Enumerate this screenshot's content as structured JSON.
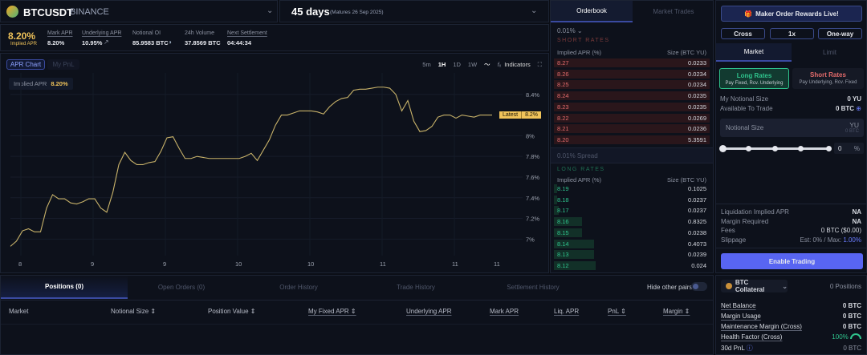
{
  "market": {
    "symbol": "BTCUSDT",
    "exchange": "BINANCE",
    "maturity_days": "45 days",
    "maturity_note": "(Matures 26 Sep 2025)"
  },
  "stats": {
    "implied_apr": "8.20%",
    "implied_apr_label": "Implied APR",
    "items": [
      {
        "label": "Mark APR",
        "value": "8.20%"
      },
      {
        "label": "Underlying APR",
        "value": "10.95%"
      },
      {
        "label": "Notional OI",
        "value": "85.9583 BTC"
      },
      {
        "label": "24h Volume",
        "value": "37.8569 BTC"
      },
      {
        "label": "Next Settlement",
        "value": "04:44:34"
      }
    ]
  },
  "chart_tabs": [
    "APR Chart",
    "My PnL"
  ],
  "toolbar": {
    "intervals": [
      "5m",
      "1H",
      "1D",
      "1W"
    ],
    "active_interval": "1H",
    "indicators": "Indicators"
  },
  "chart_data": {
    "type": "line",
    "legend_label": "Implied APR",
    "legend_value": "8.20%",
    "latest_label": "Latest",
    "latest_value": "8.2%",
    "color": "#c9b36a",
    "ylim": [
      6.84,
      8.53
    ],
    "yticks": [
      7,
      7.2,
      7.4,
      7.6,
      7.8,
      8,
      8.4
    ],
    "ytick_labels": [
      "7%",
      "7.2%",
      "7.4%",
      "7.6%",
      "7.8%",
      "8%",
      "8.4%"
    ],
    "xtick_labels": [
      "8",
      "9",
      "9",
      "10",
      "10",
      "11",
      "11",
      "11"
    ],
    "grid": true,
    "values": [
      6.93,
      6.98,
      7.08,
      7.1,
      7.07,
      7.07,
      7.3,
      7.43,
      7.39,
      7.39,
      7.35,
      7.34,
      7.36,
      7.39,
      7.39,
      7.3,
      7.26,
      7.45,
      7.72,
      7.84,
      7.76,
      7.72,
      7.72,
      7.74,
      7.75,
      7.85,
      7.98,
      7.99,
      7.88,
      7.78,
      7.78,
      7.8,
      7.79,
      7.78,
      7.78,
      7.78,
      7.78,
      7.78,
      7.78,
      7.8,
      7.83,
      7.76,
      7.86,
      7.96,
      8.1,
      8.2,
      8.2,
      8.22,
      8.24,
      8.24,
      8.24,
      8.23,
      8.21,
      8.28,
      8.33,
      8.36,
      8.37,
      8.44,
      8.45,
      8.45,
      8.46,
      8.47,
      8.47,
      8.46,
      8.4,
      8.24,
      8.34,
      8.14,
      8.04,
      8.05,
      8.09,
      8.18,
      8.2,
      8.2,
      8.17,
      8.2,
      8.19,
      8.18,
      8.2,
      8.2,
      8.2
    ]
  },
  "orderbook": {
    "tabs": [
      "Orderbook",
      "Market Trades"
    ],
    "precision": "0.01%",
    "short_label": "SHORT RATES",
    "long_label": "LONG RATES",
    "col_apr": "Implied APR (%)",
    "col_size": "Size (BTC YU)",
    "spread": "0.01% Spread",
    "short": [
      {
        "apr": "8.27",
        "size": "0.0233"
      },
      {
        "apr": "8.26",
        "size": "0.0234"
      },
      {
        "apr": "8.25",
        "size": "0.0234"
      },
      {
        "apr": "8.24",
        "size": "0.0235"
      },
      {
        "apr": "8.23",
        "size": "0.0235"
      },
      {
        "apr": "8.22",
        "size": "0.0269"
      },
      {
        "apr": "8.21",
        "size": "0.0236"
      },
      {
        "apr": "8.20",
        "size": "5.3591"
      }
    ],
    "long": [
      {
        "apr": "8.19",
        "size": "0.1025",
        "depth": 2
      },
      {
        "apr": "8.18",
        "size": "0.0237",
        "depth": 2
      },
      {
        "apr": "8.17",
        "size": "0.0237",
        "depth": 3
      },
      {
        "apr": "8.16",
        "size": "0.8325",
        "depth": 18
      },
      {
        "apr": "8.15",
        "size": "0.0238",
        "depth": 18
      },
      {
        "apr": "8.14",
        "size": "0.4073",
        "depth": 26
      },
      {
        "apr": "8.13",
        "size": "0.0239",
        "depth": 26
      },
      {
        "apr": "8.12",
        "size": "0.024",
        "depth": 27
      }
    ],
    "colors": {
      "short": "#e36b6b",
      "long": "#2fc48d"
    }
  },
  "trade": {
    "rewards": "Maker Order Rewards Live!",
    "margin_mode": "Cross",
    "leverage": "1x",
    "position_mode": "One-way",
    "tabs": [
      "Market",
      "Limit"
    ],
    "long": {
      "title": "Long Rates",
      "sub": "Pay Fixed, Rcv. Underlying"
    },
    "short": {
      "title": "Short Rates",
      "sub": "Pay Underlying, Rcv. Fixed"
    },
    "my_notional_label": "My Notional Size",
    "my_notional": "0 YU",
    "available_label": "Available To Trade",
    "available": "0 BTC",
    "notional_placeholder": "Notional Size",
    "unit": "YU",
    "unit_sub": "0 BTC",
    "percent": "0",
    "percent_sign": "%",
    "slider_value": 0,
    "info": [
      {
        "label": "Liquidation Implied APR",
        "value": "NA"
      },
      {
        "label": "Margin Required",
        "value": "NA"
      },
      {
        "label": "Fees",
        "value": "0 BTC ($0.00)"
      }
    ],
    "slippage_label": "Slippage",
    "slippage_est": "Est: 0% / Max: ",
    "slippage_max": "1.00%",
    "enable": "Enable Trading"
  },
  "bottom": {
    "tabs": [
      "Positions (0)",
      "Open Orders (0)",
      "Order History",
      "Trade History",
      "Settlement History"
    ],
    "hide_pairs": "Hide other pairs",
    "columns": [
      "Market",
      "Notional Size ⇕",
      "Position Value ⇕",
      "My Fixed APR ⇕",
      "Underlying APR",
      "Mark APR",
      "Liq. APR",
      "PnL ⇕",
      "Margin ⇕"
    ]
  },
  "account": {
    "collateral": "BTC Collateral",
    "positions": "0 Positions",
    "rows": [
      {
        "label": "Net Balance",
        "value": "0 BTC"
      },
      {
        "label": "Margin Usage",
        "value": "0 BTC"
      },
      {
        "label": "Maintenance Margin (Cross)",
        "value": "0 BTC"
      }
    ],
    "health_label": "Health Factor (Cross)",
    "health": "100%",
    "pnl_label": "30d PnL",
    "pnl": "0 BTC"
  }
}
